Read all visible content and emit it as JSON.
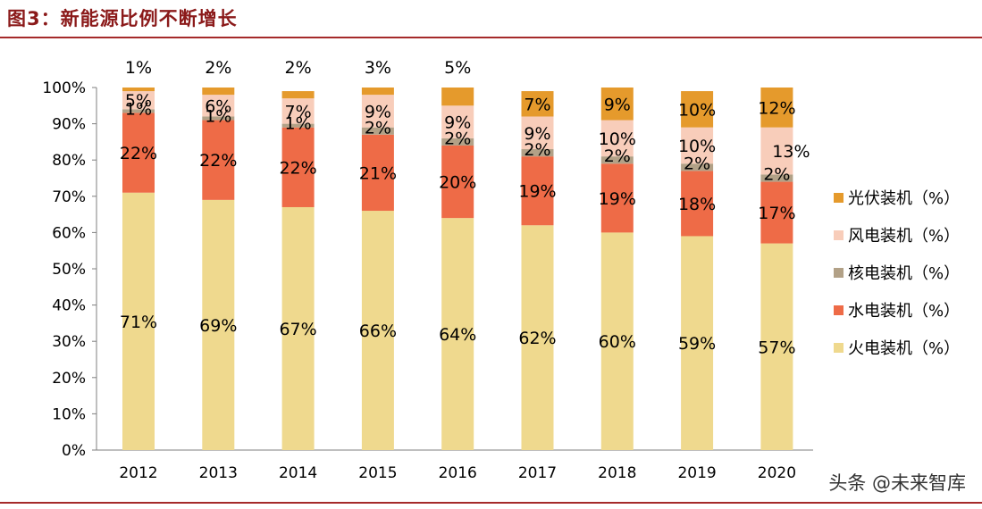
{
  "header": {
    "title": "图3：新能源比例不断增长"
  },
  "watermark": "头条 @未来智库",
  "chart_data": {
    "type": "bar",
    "stacked": true,
    "categories": [
      "2012",
      "2013",
      "2014",
      "2015",
      "2016",
      "2017",
      "2018",
      "2019",
      "2020"
    ],
    "y_ticks": [
      "0%",
      "10%",
      "20%",
      "30%",
      "40%",
      "50%",
      "60%",
      "70%",
      "80%",
      "90%",
      "100%"
    ],
    "ylim": [
      0,
      100
    ],
    "grid": false,
    "legend_position": "right",
    "series": [
      {
        "name": "火电装机（%）",
        "color": "#EFD98E",
        "values": [
          71,
          69,
          67,
          66,
          64,
          62,
          60,
          59,
          57
        ]
      },
      {
        "name": "水电装机（%）",
        "color": "#EE6B47",
        "values": [
          22,
          22,
          22,
          21,
          20,
          19,
          19,
          18,
          17
        ]
      },
      {
        "name": "核电装机（%）",
        "color": "#B2A187",
        "values": [
          1,
          1,
          1,
          2,
          2,
          2,
          2,
          2,
          2
        ]
      },
      {
        "name": "风电装机（%）",
        "color": "#F8CDBA",
        "values": [
          5,
          6,
          7,
          9,
          9,
          9,
          10,
          10,
          13
        ]
      },
      {
        "name": "光伏装机（%）",
        "color": "#E59A2C",
        "values": [
          1,
          2,
          2,
          3,
          5,
          7,
          9,
          10,
          12
        ]
      }
    ],
    "data_labels": [
      [
        "71%",
        "69%",
        "67%",
        "66%",
        "64%",
        "62%",
        "60%",
        "59%",
        "57%"
      ],
      [
        "22%",
        "22%",
        "22%",
        "21%",
        "20%",
        "19%",
        "19%",
        "18%",
        "17%"
      ],
      [
        "1%",
        "1%",
        "1%",
        "2%",
        "2%",
        "2%",
        "2%",
        "2%",
        "2%"
      ],
      [
        "5%",
        "6%",
        "7%",
        "9%",
        "9%",
        "9%",
        "10%",
        "10%",
        "13%"
      ],
      [
        "1%",
        "2%",
        "2%",
        "3%",
        "5%",
        "7%",
        "9%",
        "10%",
        "12%"
      ]
    ]
  }
}
